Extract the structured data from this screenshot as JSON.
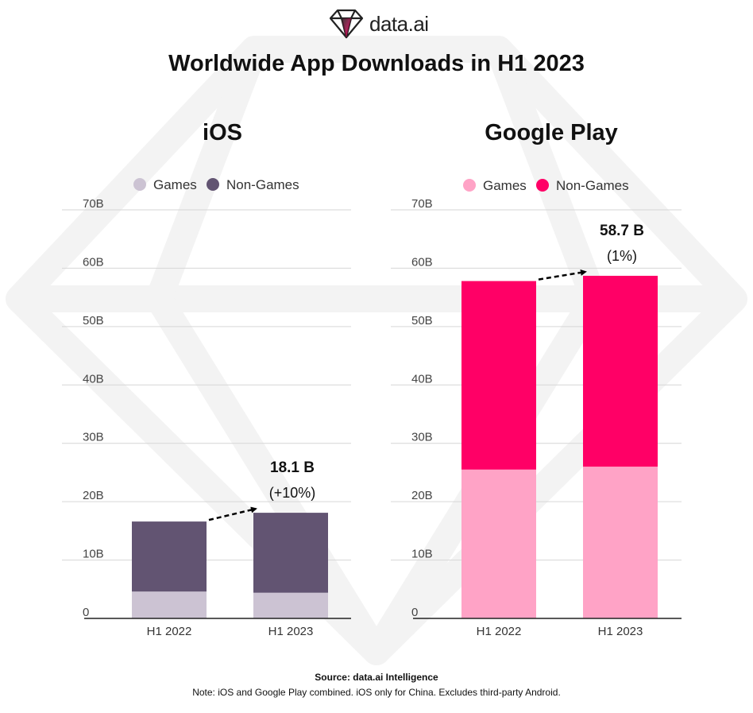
{
  "brand": {
    "name": "data.ai"
  },
  "title": "Worldwide App Downloads in H1 2023",
  "colors": {
    "ios_games": "#ccc3d3",
    "ios_nongames": "#625472",
    "gp_games": "#ffa3c6",
    "gp_nongames": "#ff0066",
    "grid": "#d6d6d6",
    "axis": "#222222",
    "text": "#111111",
    "tick": "#444444"
  },
  "chart_data": [
    {
      "type": "bar",
      "stacked": true,
      "title": "iOS",
      "categories": [
        "H1 2022",
        "H1 2023"
      ],
      "series": [
        {
          "name": "Games",
          "values": [
            4.6,
            4.4
          ]
        },
        {
          "name": "Non-Games",
          "values": [
            12.0,
            13.7
          ]
        }
      ],
      "ylim": [
        0,
        70
      ],
      "yticks": [
        0,
        10,
        20,
        30,
        40,
        50,
        60,
        70
      ],
      "ytick_labels": [
        "0",
        "10B",
        "20B",
        "30B",
        "40B",
        "50B",
        "60B",
        "70B"
      ],
      "grid": true,
      "legend": "top",
      "annotation": {
        "value": "18.1 B",
        "change": "(+10%)"
      }
    },
    {
      "type": "bar",
      "stacked": true,
      "title": "Google Play",
      "categories": [
        "H1 2022",
        "H1 2023"
      ],
      "series": [
        {
          "name": "Games",
          "values": [
            25.5,
            26.0
          ]
        },
        {
          "name": "Non-Games",
          "values": [
            32.3,
            32.7
          ]
        }
      ],
      "ylim": [
        0,
        70
      ],
      "yticks": [
        0,
        10,
        20,
        30,
        40,
        50,
        60,
        70
      ],
      "ytick_labels": [
        "0",
        "10B",
        "20B",
        "30B",
        "40B",
        "50B",
        "60B",
        "70B"
      ],
      "grid": true,
      "legend": "top",
      "annotation": {
        "value": "58.7 B",
        "change": "(1%)"
      }
    }
  ],
  "footer": {
    "source": "Source: data.ai Intelligence",
    "note": "Note: iOS and Google Play combined. iOS only for China. Excludes third-party Android."
  }
}
